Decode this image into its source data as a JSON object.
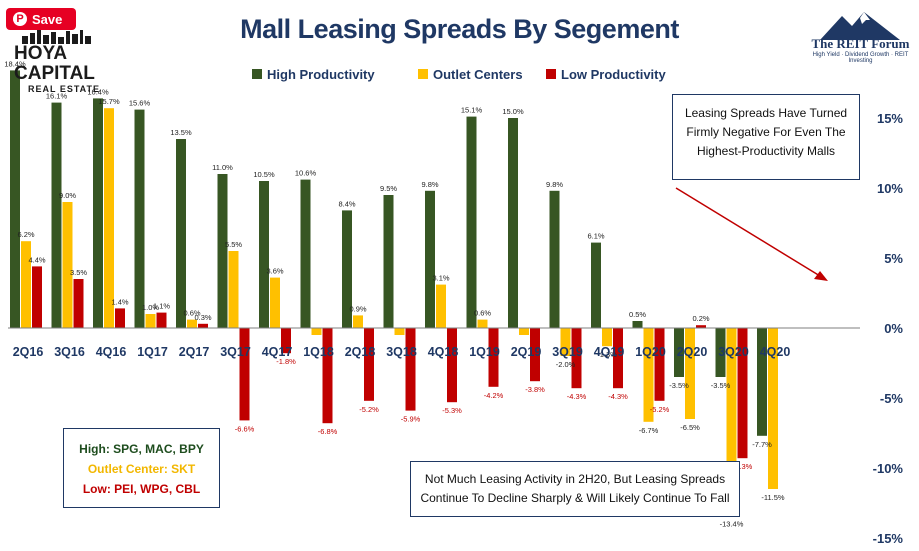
{
  "pin_button": {
    "label": "Save",
    "icon": "pinterest-icon"
  },
  "logos": {
    "hoya_line1": "HOYA CAPITAL",
    "hoya_line2": "REAL ESTATE",
    "reit_line1": "The REIT Forum",
    "reit_line2": "High Yield · Dividend Growth · REIT Investing"
  },
  "annotations": {
    "top_box": [
      "Leasing Spreads Have Turned",
      "Firmly Negative For Even The",
      "Highest-Productivity Malls"
    ],
    "bottom_box": [
      "Not Much Leasing Activity in 2H20, But Leasing Spreads",
      "Continue To Decline Sharply & Will Likely Continue To Fall"
    ],
    "key_box": [
      {
        "text": "High: SPG, MAC, BPY",
        "color": "#1e4d1e"
      },
      {
        "text": "Outlet Center: SKT",
        "color": "#f2b700"
      },
      {
        "text": "Low: PEI, WPG, CBL",
        "color": "#c00000"
      }
    ]
  },
  "chart_data": {
    "type": "bar",
    "title": "Mall Leasing Spreads By Segement",
    "categories": [
      "2Q16",
      "3Q16",
      "4Q16",
      "1Q17",
      "2Q17",
      "3Q17",
      "4Q17",
      "1Q18",
      "2Q18",
      "3Q18",
      "4Q18",
      "1Q19",
      "2Q19",
      "3Q19",
      "4Q19",
      "1Q20",
      "2Q20",
      "3Q20",
      "4Q20"
    ],
    "series": [
      {
        "name": "High Productivity",
        "color": "#375623",
        "values": [
          18.4,
          16.1,
          16.4,
          15.6,
          13.5,
          11.0,
          10.5,
          10.6,
          8.4,
          9.5,
          9.8,
          15.1,
          15.0,
          9.8,
          6.1,
          0.5,
          -3.5,
          -3.5,
          -7.7
        ],
        "labels": [
          "18.4%",
          "16.1%",
          "16.4%",
          "15.6%",
          "13.5%",
          "11.0%",
          "10.5%",
          "10.6%",
          "8.4%",
          "9.5%",
          "9.8%",
          "15.1%",
          "15.0%",
          "9.8%",
          "6.1%",
          "0.5%",
          "-3.5%",
          "-3.5%",
          "-7.7%"
        ]
      },
      {
        "name": "Outlet Centers",
        "color": "#ffc000",
        "values": [
          6.2,
          9.0,
          15.7,
          1.0,
          0.6,
          5.5,
          3.6,
          -0.5,
          0.9,
          -0.5,
          3.1,
          0.6,
          -0.5,
          -2.0,
          -1.3,
          -6.7,
          -6.5,
          -13.4,
          -11.5
        ],
        "labels": [
          "6.2%",
          "9.0%",
          "15.7%",
          "1.0%",
          "0.6%",
          "5.5%",
          "3.6%",
          "",
          "0.9%",
          "",
          "3.1%",
          "0.6%",
          "",
          "-2.0%",
          "-1.3%",
          "-6.7%",
          "-6.5%",
          "-13.4%",
          "-11.5%"
        ]
      },
      {
        "name": "Low Productivity",
        "color": "#c00000",
        "values": [
          4.4,
          3.5,
          1.4,
          1.1,
          0.3,
          -6.6,
          -1.8,
          -6.8,
          -5.2,
          -5.9,
          -5.3,
          -4.2,
          -3.8,
          -4.3,
          -4.3,
          -5.2,
          0.2,
          -9.3,
          null
        ],
        "labels": [
          "4.4%",
          "3.5%",
          "1.4%",
          "1.1%",
          "0.3%",
          "-6.6%",
          "-1.8%",
          "-6.8%",
          "-5.2%",
          "-5.9%",
          "-5.3%",
          "-4.2%",
          "-3.8%",
          "-4.3%",
          "-4.3%",
          "-5.2%",
          "0.2%",
          "-9.3%",
          ""
        ]
      }
    ],
    "yticks": [
      "15%",
      "10%",
      "5%",
      "0%",
      "-5%",
      "-10%",
      "-15%"
    ],
    "ytick_values": [
      15,
      10,
      5,
      0,
      -5,
      -10,
      -15
    ],
    "ylim": [
      -15,
      18.4
    ],
    "axis_side": "right",
    "legend_position": "top-center",
    "grid": false
  }
}
